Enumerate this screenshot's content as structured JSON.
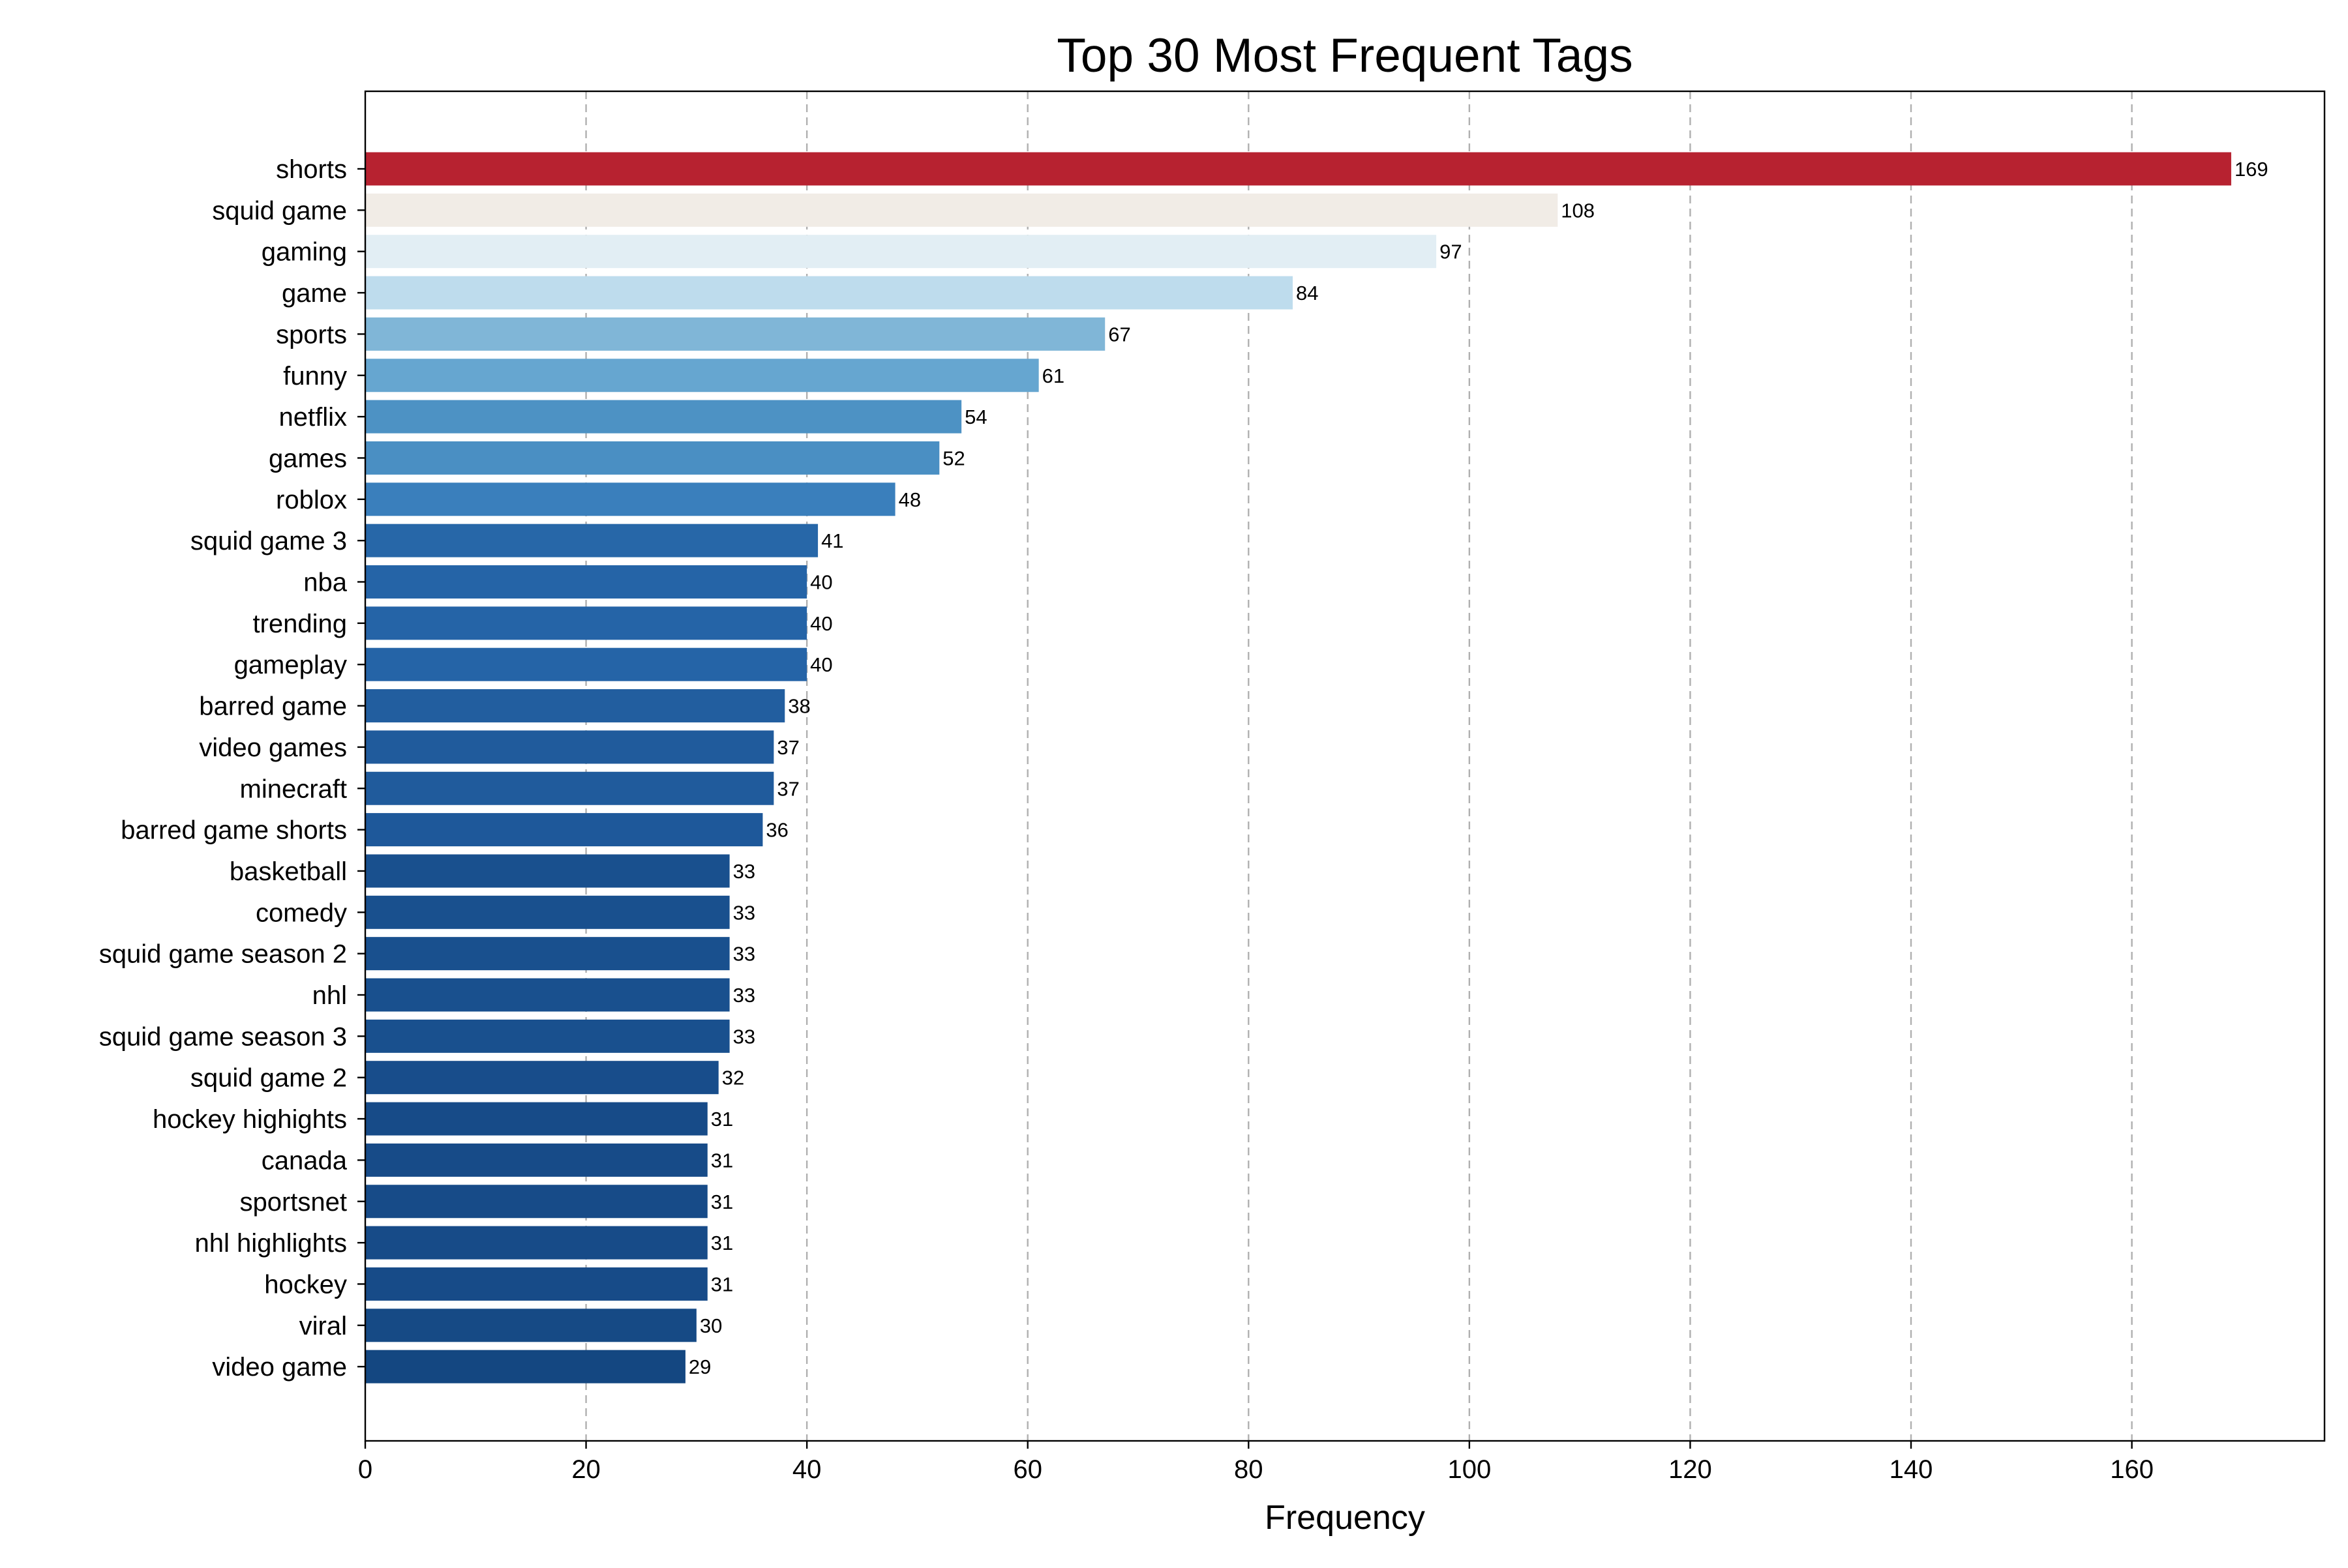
{
  "chart_data": {
    "type": "bar",
    "orientation": "horizontal",
    "title": "Top 30 Most Frequent Tags",
    "xlabel": "Frequency",
    "ylabel": "",
    "xlim": [
      0,
      177.45
    ],
    "xticks": [
      0,
      20,
      40,
      60,
      80,
      100,
      120,
      140,
      160
    ],
    "grid": "x-dashed",
    "categories": [
      "shorts",
      "squid game",
      "gaming",
      "game",
      "sports",
      "funny",
      "netflix",
      "games",
      "roblox",
      "squid game 3",
      "nba",
      "trending",
      "gameplay",
      "barred game",
      "video games",
      "minecraft",
      "barred game shorts",
      "basketball",
      "comedy",
      "squid game season 2",
      "nhl",
      "squid game season 3",
      "squid game 2",
      "hockey highights",
      "canada",
      "sportsnet",
      "nhl highlights",
      "hockey",
      "viral",
      "video game"
    ],
    "values": [
      169,
      108,
      97,
      84,
      67,
      61,
      54,
      52,
      48,
      41,
      40,
      40,
      40,
      38,
      37,
      37,
      36,
      33,
      33,
      33,
      33,
      33,
      32,
      31,
      31,
      31,
      31,
      31,
      30,
      29
    ],
    "colors": [
      "#b72230",
      "#f1ece6",
      "#e2eef4",
      "#bedced",
      "#80b6d7",
      "#66a6d0",
      "#4d92c4",
      "#4a8fc3",
      "#3a7fbc",
      "#2767a8",
      "#2564a7",
      "#2564a7",
      "#2564a7",
      "#225e9f",
      "#205b9c",
      "#205b9c",
      "#1e589a",
      "#19508e",
      "#19508e",
      "#19508e",
      "#19508e",
      "#19508e",
      "#184d8b",
      "#174b88",
      "#174b88",
      "#174b88",
      "#174b88",
      "#174b88",
      "#164a85",
      "#144781"
    ]
  }
}
